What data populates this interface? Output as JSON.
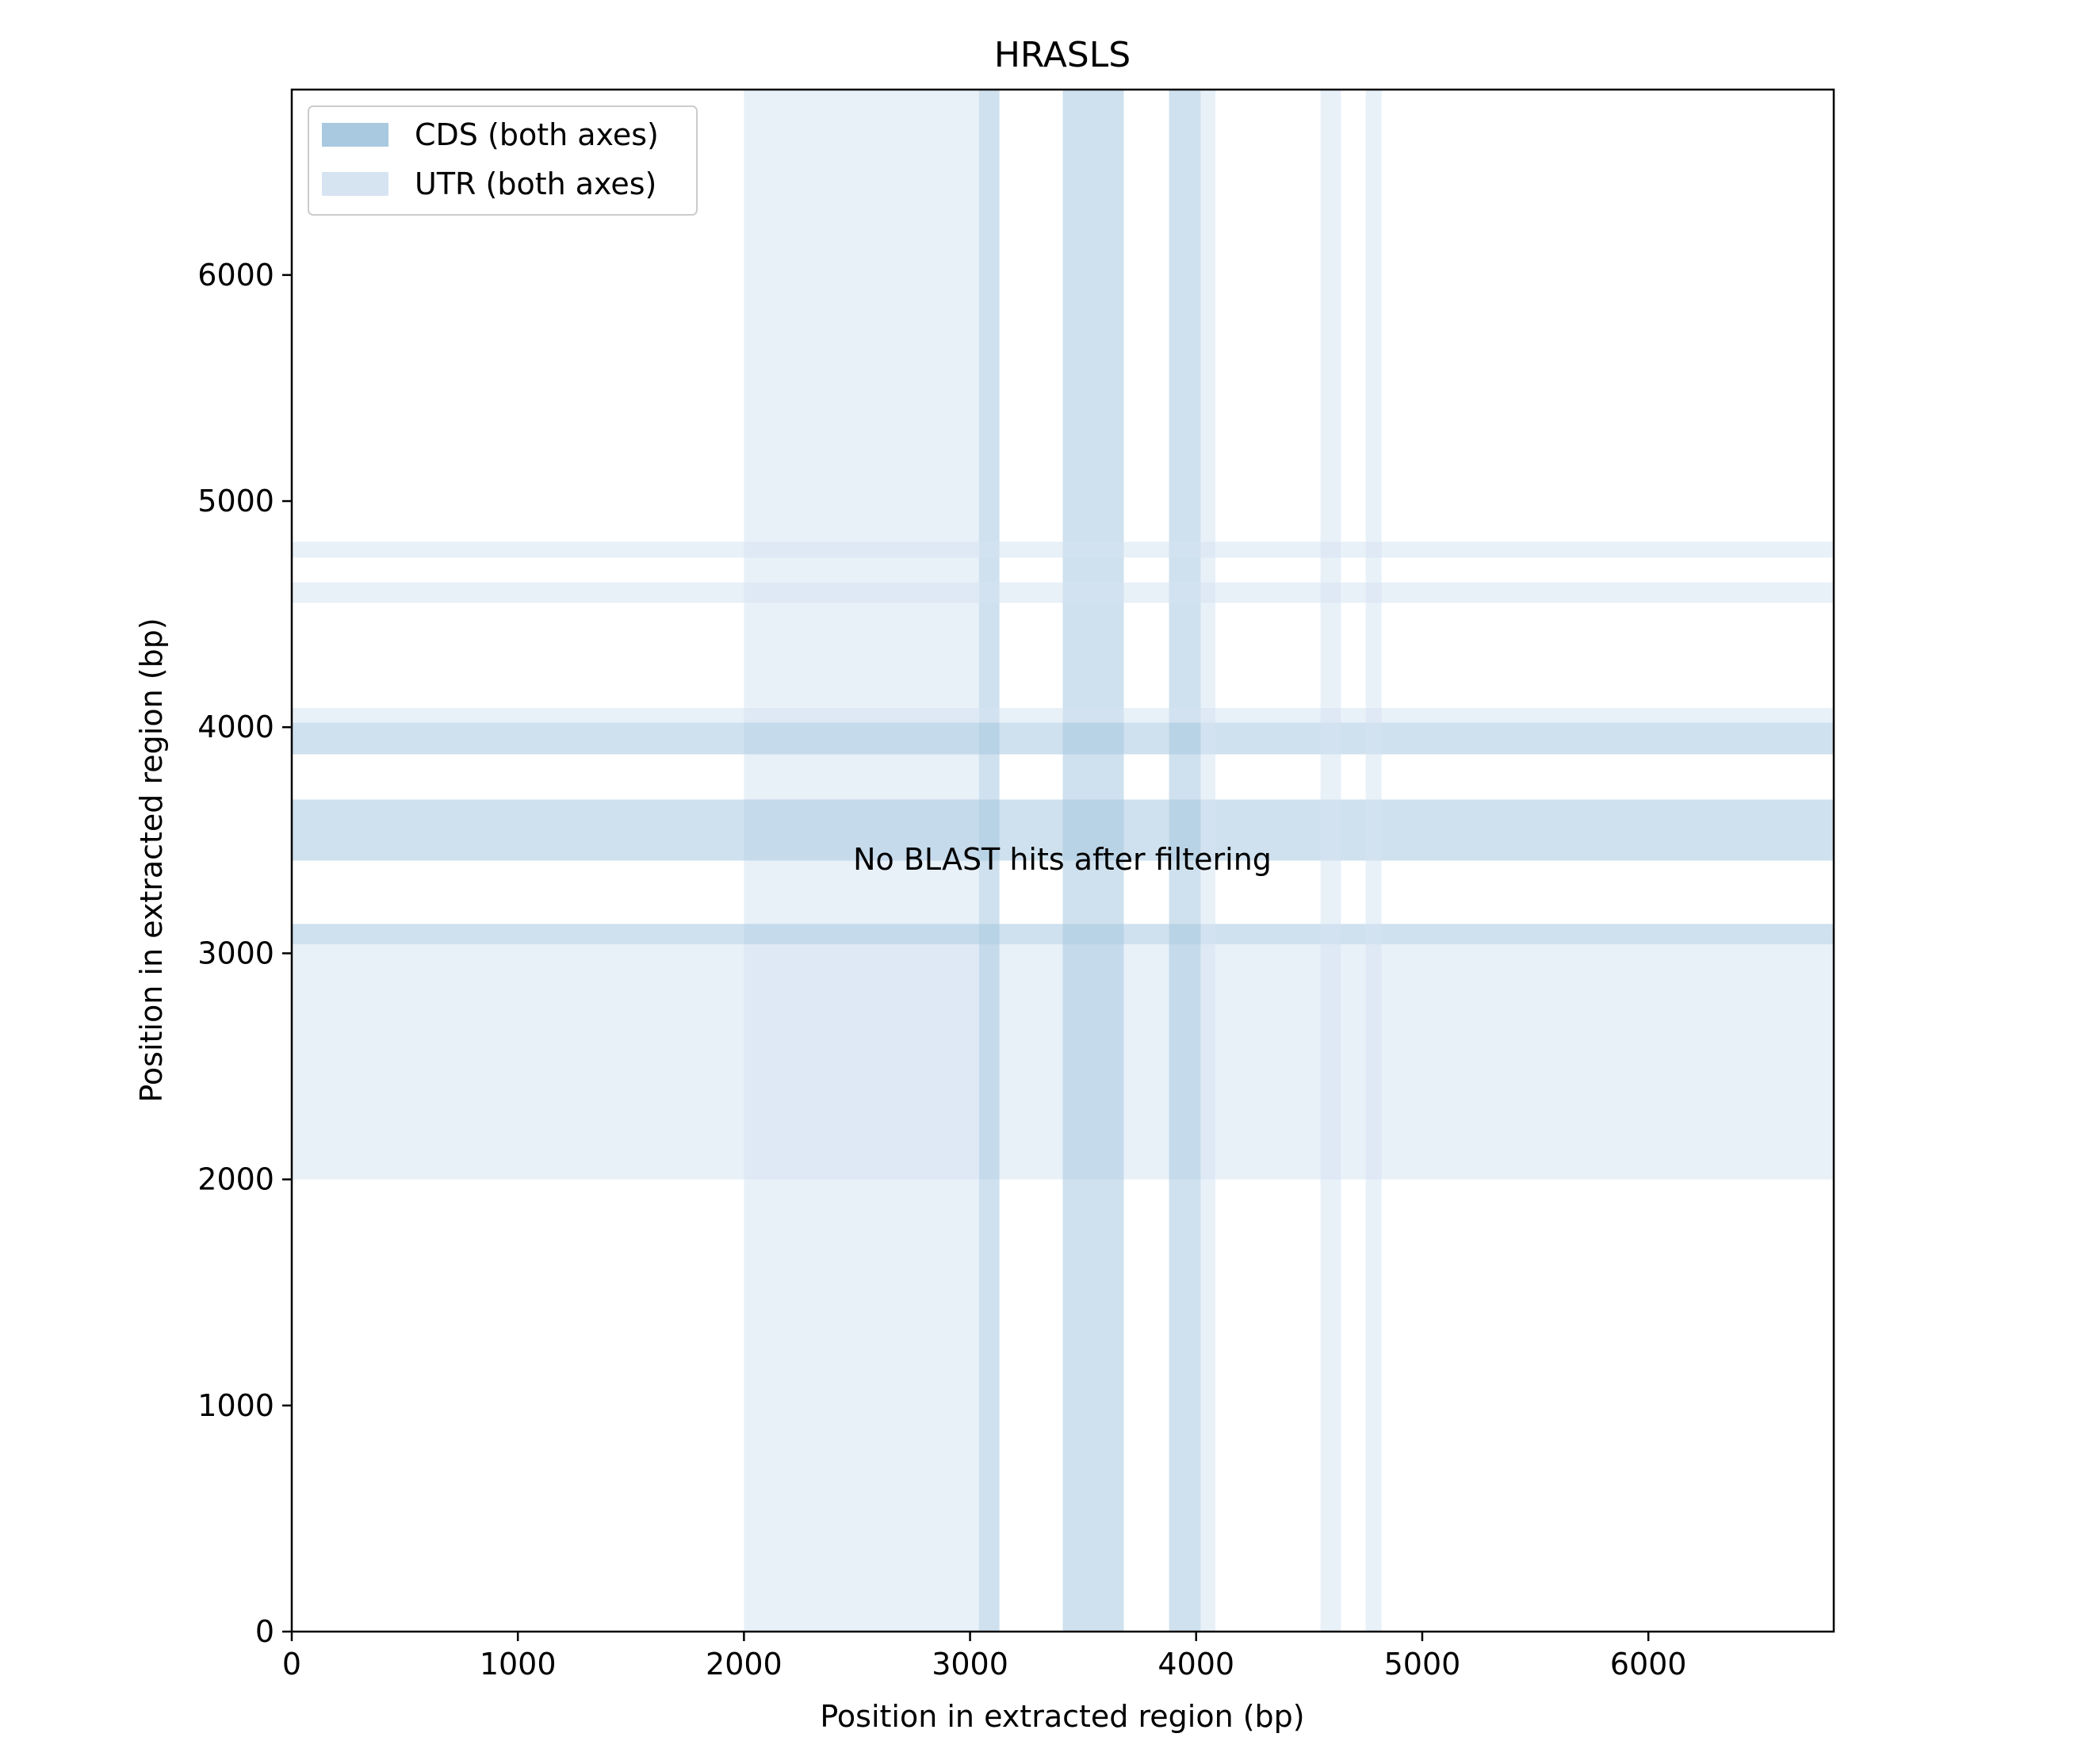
{
  "chart_data": {
    "type": "dotplot",
    "title": "HRASLS",
    "xlabel": "Position in extracted region (bp)",
    "ylabel": "Position in extracted region (bp)",
    "xlim": [
      0,
      6820
    ],
    "ylim": [
      0,
      6820
    ],
    "xticks": [
      0,
      1000,
      2000,
      3000,
      4000,
      5000,
      6000
    ],
    "yticks": [
      0,
      1000,
      2000,
      3000,
      4000,
      5000,
      6000
    ],
    "grid": false,
    "legend_placement": "top-left",
    "annotation": "No BLAST hits after filtering",
    "legend": [
      {
        "label": "CDS (both axes)",
        "color": "#a8c9e0"
      },
      {
        "label": "UTR (both axes)",
        "color": "#d6e4f2"
      }
    ],
    "features": [
      {
        "kind": "UTR",
        "start": 2000,
        "end": 3040
      },
      {
        "kind": "CDS",
        "start": 3040,
        "end": 3130
      },
      {
        "kind": "CDS",
        "start": 3410,
        "end": 3680
      },
      {
        "kind": "CDS",
        "start": 3880,
        "end": 4020
      },
      {
        "kind": "UTR",
        "start": 4020,
        "end": 4085
      },
      {
        "kind": "UTR",
        "start": 4550,
        "end": 4640
      },
      {
        "kind": "UTR",
        "start": 4750,
        "end": 4820
      }
    ],
    "colors": {
      "cds": "#a8c9e0",
      "utr": "#d6e4f2",
      "axis": "#000000"
    }
  }
}
